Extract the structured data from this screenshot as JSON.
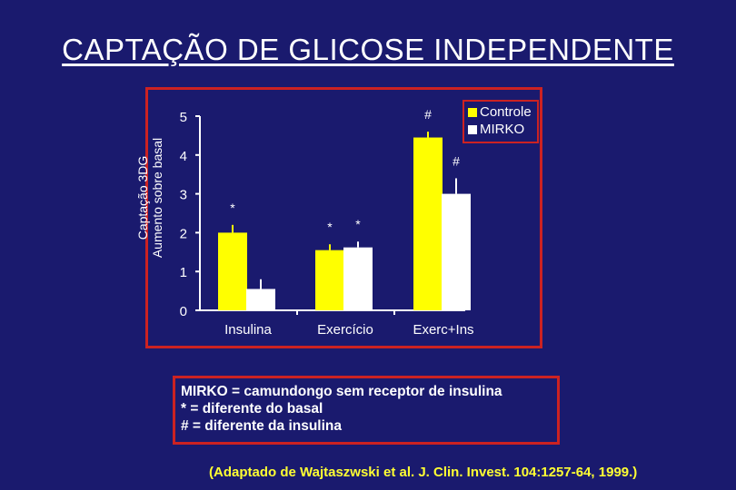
{
  "title": "CAPTAÇÃO DE GLICOSE INDEPENDENTE",
  "chart_data": {
    "type": "bar",
    "ylabel_line1": "Captação 3DG",
    "ylabel_line2": "Aumento sobre basal",
    "ylim": [
      0,
      5
    ],
    "yticks": [
      "0",
      "1",
      "2",
      "3",
      "4",
      "5"
    ],
    "categories": [
      "Insulina",
      "Exercício",
      "Exerc+Ins"
    ],
    "series": [
      {
        "name": "Controle",
        "color": "#ffff00",
        "values": [
          2.0,
          1.55,
          4.45
        ],
        "errors": [
          0.2,
          0.15,
          0.15
        ]
      },
      {
        "name": "MIRKO",
        "color": "#ffffff",
        "values": [
          0.55,
          1.62,
          3.0
        ],
        "errors": [
          0.25,
          0.15,
          0.4
        ]
      }
    ],
    "annotations": [
      {
        "series": 0,
        "category": 0,
        "text": "*"
      },
      {
        "series": 0,
        "category": 1,
        "text": "*"
      },
      {
        "series": 1,
        "category": 1,
        "text": "*"
      },
      {
        "series": 0,
        "category": 2,
        "text": "#"
      },
      {
        "series": 1,
        "category": 2,
        "text": "#"
      }
    ],
    "legend_position": "top-right",
    "grid": false
  },
  "notes": [
    "MIRKO = camundongo sem receptor de insulina",
    "* = diferente do basal",
    "# = diferente da insulina"
  ],
  "source": "(Adaptado de Wajtaszwski et al. J. Clin. Invest. 104:1257-64, 1999.)"
}
